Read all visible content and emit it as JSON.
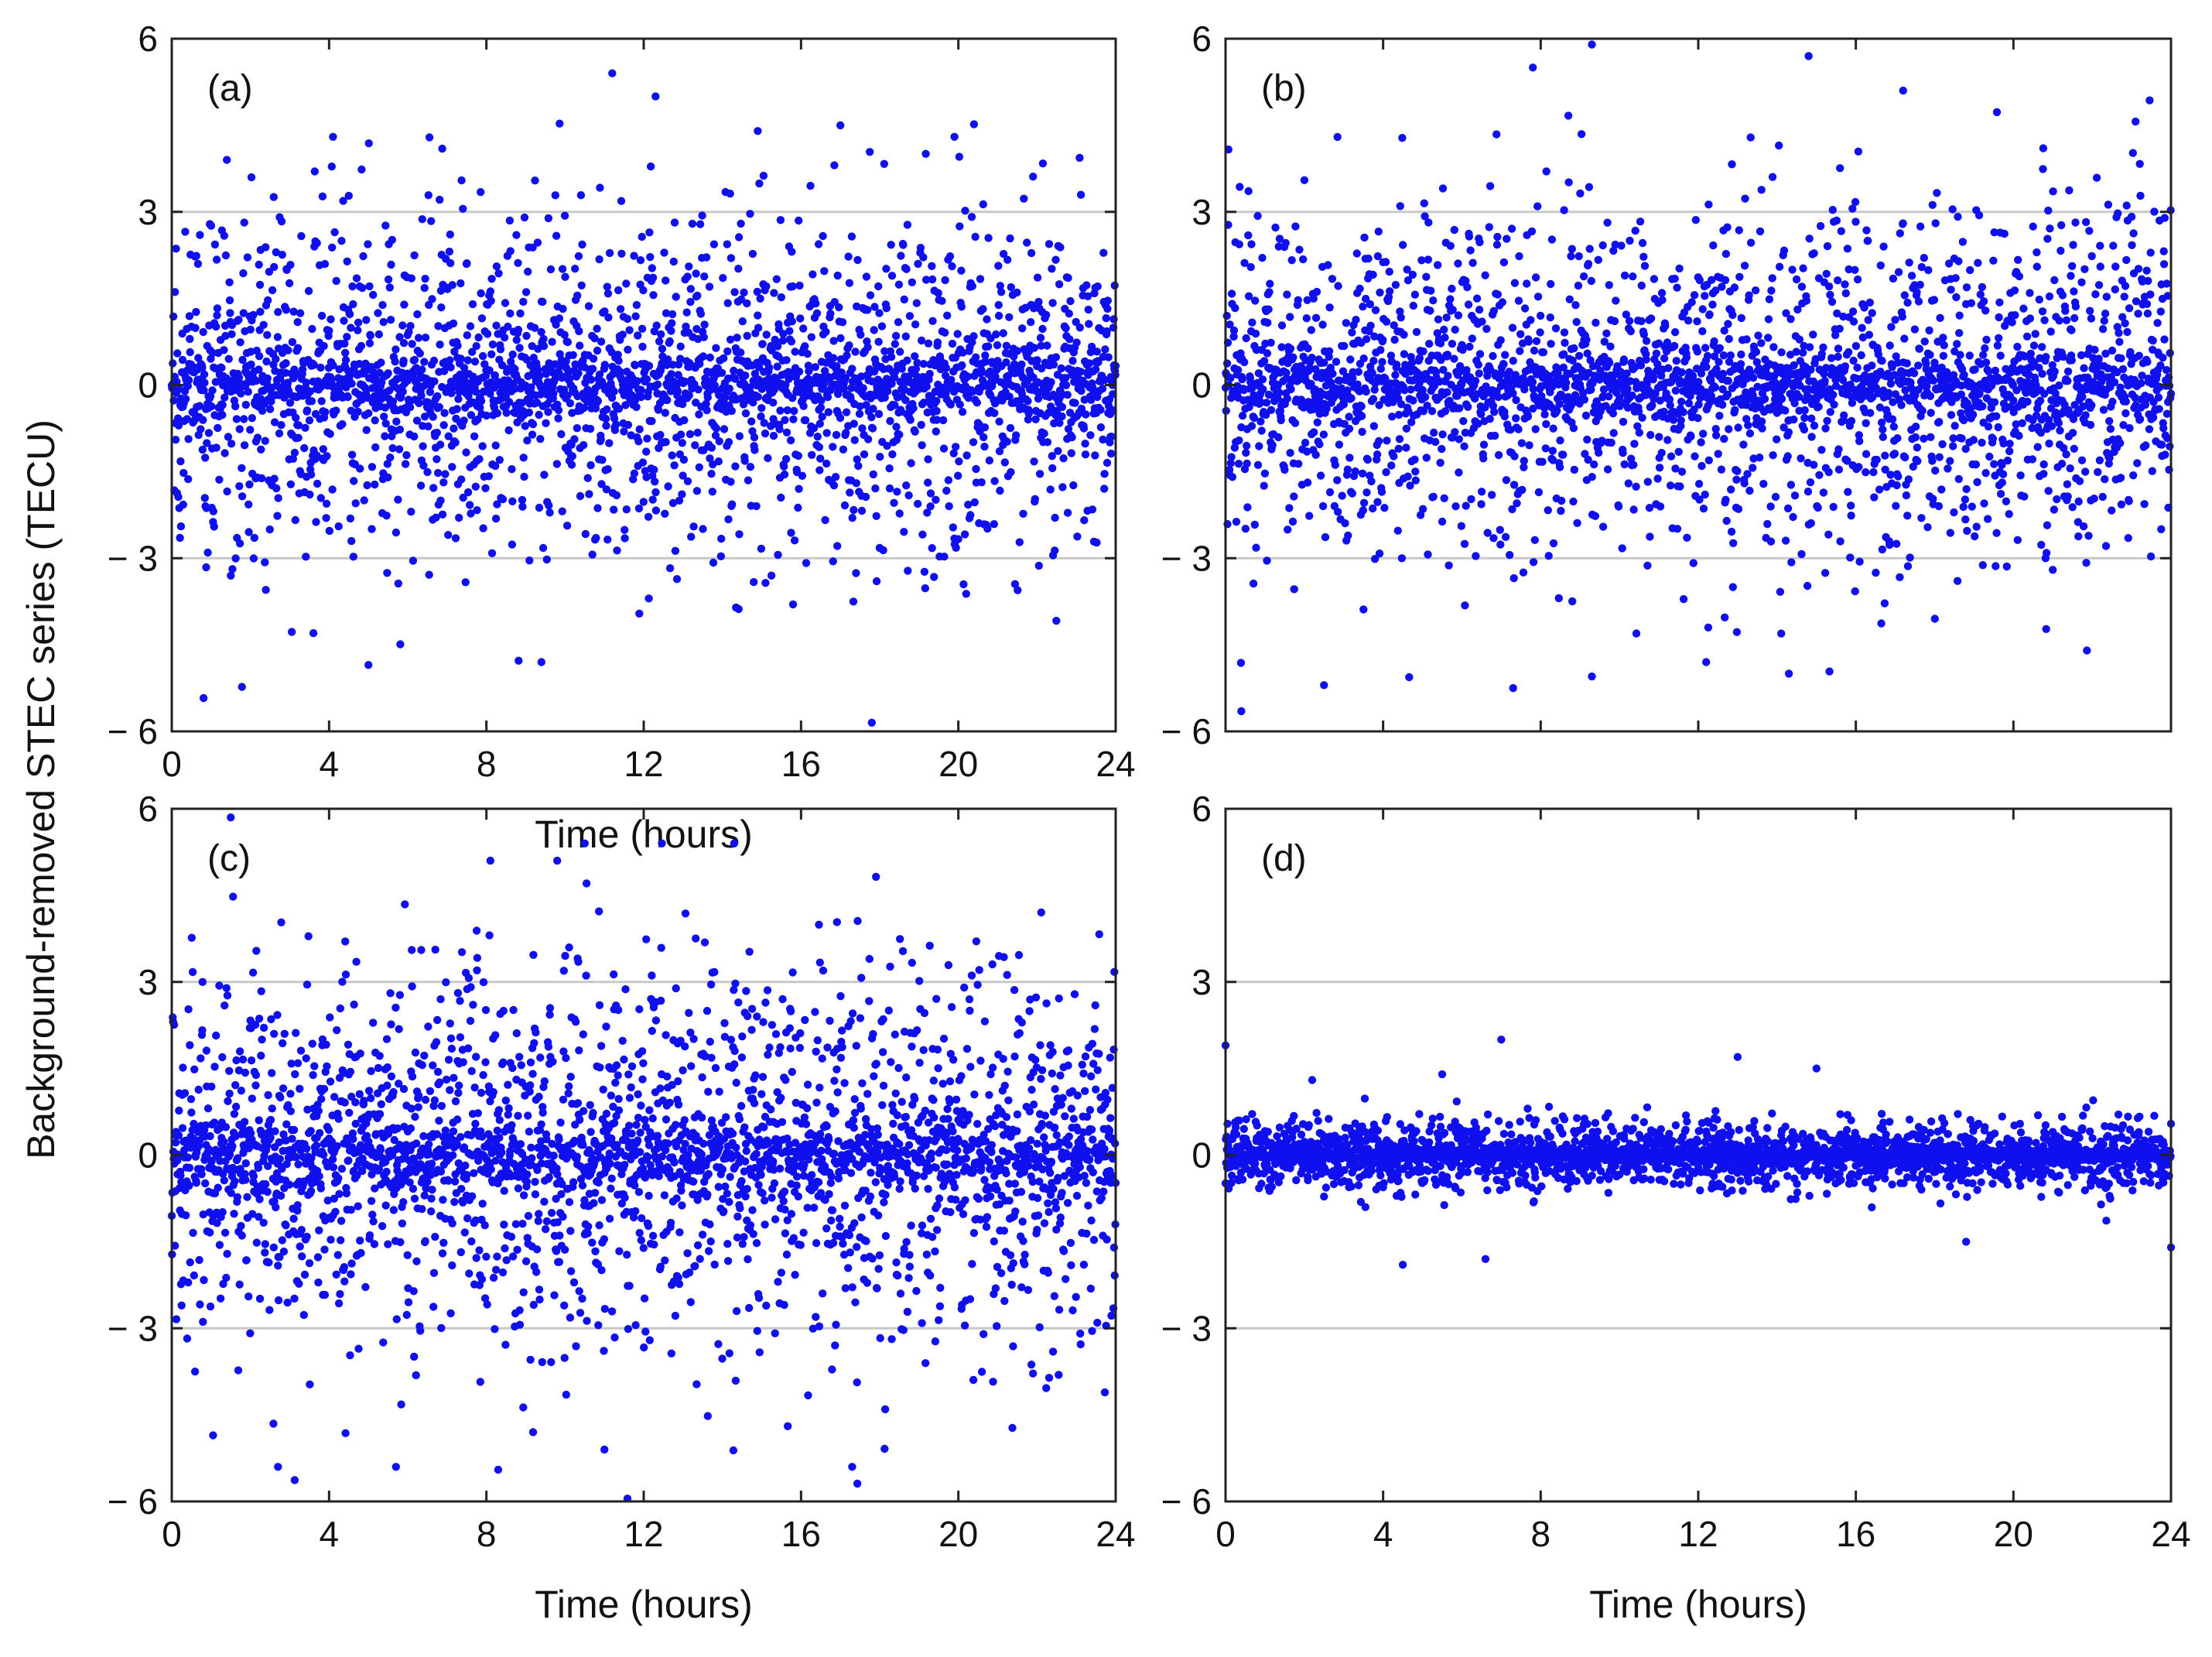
{
  "chart_data": {
    "type": "scatter",
    "ylabel": "Background-removed STEC series  (TECU)",
    "marker_color": "#1010ee",
    "panels": [
      {
        "id": "a",
        "label": "(a)",
        "xlabel": "Time (hours)",
        "xlim": [
          0,
          24
        ],
        "ylim": [
          -6,
          6
        ],
        "xticks": [
          0,
          4,
          8,
          12,
          16,
          20,
          24
        ],
        "xtick_labels": [
          "0",
          "4",
          "8",
          "12",
          "16",
          "20",
          "24"
        ],
        "yticks": [
          -6,
          -3,
          0,
          3,
          6
        ],
        "ytick_labels": [
          "− 6",
          "− 3",
          "0",
          "3",
          "6"
        ],
        "ygrid": [
          -3,
          3
        ],
        "n_points": 2880,
        "spread_tecu": 1.55,
        "outliers": [
          [
            11.2,
            5.4
          ],
          [
            12.3,
            5.0
          ],
          [
            17.8,
            -5.85
          ],
          [
            5.0,
            -4.85
          ],
          [
            9.4,
            -4.8
          ],
          [
            17.0,
            4.5
          ],
          [
            19.9,
            4.3
          ],
          [
            4.1,
            4.3
          ],
          [
            14.9,
            4.4
          ],
          [
            1.4,
            3.9
          ]
        ]
      },
      {
        "id": "b",
        "label": "(b)",
        "xlabel": "",
        "xlim": [
          0,
          24
        ],
        "ylim": [
          -6,
          6
        ],
        "xticks": [
          0,
          4,
          8,
          12,
          16,
          20,
          24
        ],
        "xtick_labels": [
          "",
          "",
          "",
          "",
          "",
          "",
          ""
        ],
        "yticks": [
          -6,
          -3,
          0,
          3,
          6
        ],
        "ytick_labels": [
          "− 6",
          "− 3",
          "0",
          "3",
          "6"
        ],
        "ygrid": [
          -3,
          3
        ],
        "n_points": 2880,
        "spread_tecu": 1.6,
        "outliers": [
          [
            9.3,
            5.9
          ],
          [
            7.8,
            5.5
          ],
          [
            14.8,
            5.7
          ],
          [
            17.2,
            5.1
          ],
          [
            0.4,
            -5.65
          ],
          [
            7.3,
            -5.25
          ],
          [
            2.5,
            -5.2
          ],
          [
            9.3,
            -5.05
          ],
          [
            14.3,
            -5.0
          ],
          [
            12.2,
            -4.8
          ]
        ]
      },
      {
        "id": "c",
        "label": "(c)",
        "xlabel": "Time (hours)",
        "xlim": [
          0,
          24
        ],
        "ylim": [
          -6,
          6
        ],
        "xticks": [
          0,
          4,
          8,
          12,
          16,
          20,
          24
        ],
        "xtick_labels": [
          "0",
          "4",
          "8",
          "12",
          "16",
          "20",
          "24"
        ],
        "yticks": [
          -6,
          -3,
          0,
          3,
          6
        ],
        "ytick_labels": [
          "− 6",
          "− 3",
          "0",
          "3",
          "6"
        ],
        "ygrid": [
          -3,
          3
        ],
        "n_points": 2880,
        "spread_tecu": 1.7,
        "outliers": [
          [
            1.5,
            5.85
          ],
          [
            10.5,
            5.4
          ],
          [
            14.3,
            5.4
          ],
          [
            9.8,
            5.1
          ],
          [
            8.1,
            5.1
          ],
          [
            2.7,
            -5.4
          ],
          [
            5.7,
            -5.4
          ],
          [
            8.3,
            -5.45
          ],
          [
            17.3,
            -5.4
          ],
          [
            11.0,
            -5.1
          ]
        ]
      },
      {
        "id": "d",
        "label": "(d)",
        "xlabel": "Time (hours)",
        "xlim": [
          0,
          24
        ],
        "ylim": [
          -6,
          6
        ],
        "xticks": [
          0,
          4,
          8,
          12,
          16,
          20,
          24
        ],
        "xtick_labels": [
          "0",
          "4",
          "8",
          "12",
          "16",
          "20",
          "24"
        ],
        "yticks": [
          -6,
          -3,
          0,
          3,
          6
        ],
        "ytick_labels": [
          "− 6",
          "− 3",
          "0",
          "3",
          "6"
        ],
        "ygrid": [
          -3,
          3
        ],
        "n_points": 2880,
        "spread_tecu": 0.3,
        "outliers": [
          [
            0.0,
            1.9
          ],
          [
            7.0,
            2.0
          ],
          [
            13.0,
            1.7
          ],
          [
            15.0,
            1.5
          ],
          [
            4.5,
            -1.9
          ],
          [
            6.6,
            -1.8
          ],
          [
            24.0,
            -1.6
          ],
          [
            18.8,
            -1.5
          ],
          [
            5.5,
            1.4
          ],
          [
            2.2,
            1.3
          ]
        ]
      }
    ]
  }
}
